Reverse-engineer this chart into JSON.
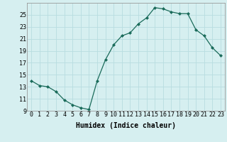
{
  "x": [
    0,
    1,
    2,
    3,
    4,
    5,
    6,
    7,
    8,
    9,
    10,
    11,
    12,
    13,
    14,
    15,
    16,
    17,
    18,
    19,
    20,
    21,
    22,
    23
  ],
  "y": [
    14,
    13.2,
    13,
    12.2,
    10.8,
    10,
    9.5,
    9.2,
    14,
    17.5,
    20,
    21.5,
    22,
    23.5,
    24.5,
    26.2,
    26,
    25.5,
    25.2,
    25.2,
    22.5,
    21.5,
    19.5,
    18.2
  ],
  "line_color": "#1a6b5a",
  "marker": "D",
  "marker_size": 2,
  "bg_color": "#d6eff0",
  "grid_color": "#b8dde0",
  "xlabel": "Humidex (Indice chaleur)",
  "xlim": [
    -0.5,
    23.5
  ],
  "ylim": [
    9,
    27
  ],
  "yticks": [
    9,
    11,
    13,
    15,
    17,
    19,
    21,
    23,
    25
  ],
  "xticks": [
    0,
    1,
    2,
    3,
    4,
    5,
    6,
    7,
    8,
    9,
    10,
    11,
    12,
    13,
    14,
    15,
    16,
    17,
    18,
    19,
    20,
    21,
    22,
    23
  ],
  "xlabel_fontsize": 7,
  "tick_fontsize": 6
}
